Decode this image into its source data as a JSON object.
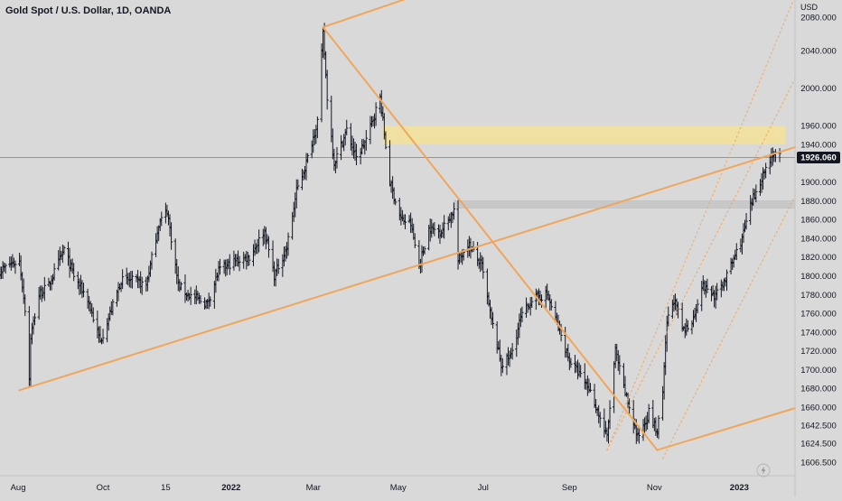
{
  "header": {
    "symbol_title": "Gold Spot / U.S. Dollar, 1D, OANDA"
  },
  "price_axis": {
    "unit_label": "USD",
    "current_price_label": "1926.060"
  },
  "chart_data": {
    "type": "ohlc",
    "title": "Gold Spot / U.S. Dollar, 1D, OANDA",
    "ylim": [
      1595,
      2090
    ],
    "y_ticks": [
      1606.5,
      1624.5,
      1642.5,
      1660,
      1680,
      1700,
      1720,
      1740,
      1760,
      1780,
      1800,
      1820,
      1840,
      1860,
      1880,
      1900,
      1920,
      1940,
      1960,
      2000,
      2040,
      2080
    ],
    "y_tick_labels": [
      "1606.500",
      "1624.500",
      "1642.500",
      "1660.000",
      "1680.000",
      "1700.000",
      "1720.000",
      "1740.000",
      "1760.000",
      "1780.000",
      "1800.000",
      "1820.000",
      "1840.000",
      "1860.000",
      "1880.000",
      "1900.000",
      "1920.000",
      "1940.000",
      "1960.000",
      "2000.000",
      "2040.000",
      "2080.000"
    ],
    "x_ticks": [
      "2021-08-01",
      "2021-10-01",
      "2021-11-15",
      "2022-01-01",
      "2022-03-01",
      "2022-05-01",
      "2022-07-01",
      "2022-09-01",
      "2022-11-01",
      "2023-01-01"
    ],
    "x_tick_labels": [
      "Aug",
      "Oct",
      "15",
      "2022",
      "Mar",
      "May",
      "Jul",
      "Sep",
      "Nov",
      "2023"
    ],
    "xlim": [
      "2021-07-19",
      "2023-02-10"
    ],
    "current_price": 1926.06,
    "price_path": [
      [
        "2021-07-19",
        1805
      ],
      [
        "2021-07-26",
        1812
      ],
      [
        "2021-08-02",
        1815
      ],
      [
        "2021-08-06",
        1765
      ],
      [
        "2021-08-09",
        1690
      ],
      [
        "2021-08-10",
        1735
      ],
      [
        "2021-08-16",
        1780
      ],
      [
        "2021-08-23",
        1790
      ],
      [
        "2021-09-03",
        1828
      ],
      [
        "2021-09-10",
        1800
      ],
      [
        "2021-09-20",
        1775
      ],
      [
        "2021-09-29",
        1730
      ],
      [
        "2021-10-05",
        1755
      ],
      [
        "2021-10-14",
        1795
      ],
      [
        "2021-10-22",
        1795
      ],
      [
        "2021-11-01",
        1790
      ],
      [
        "2021-11-10",
        1855
      ],
      [
        "2021-11-16",
        1870
      ],
      [
        "2021-11-24",
        1790
      ],
      [
        "2021-12-01",
        1780
      ],
      [
        "2021-12-15",
        1770
      ],
      [
        "2021-12-23",
        1805
      ],
      [
        "2022-01-03",
        1815
      ],
      [
        "2022-01-14",
        1820
      ],
      [
        "2022-01-25",
        1848
      ],
      [
        "2022-02-01",
        1800
      ],
      [
        "2022-02-10",
        1830
      ],
      [
        "2022-02-17",
        1890
      ],
      [
        "2022-02-24",
        1920
      ],
      [
        "2022-03-04",
        1965
      ],
      [
        "2022-03-08",
        2060
      ],
      [
        "2022-03-11",
        1990
      ],
      [
        "2022-03-16",
        1920
      ],
      [
        "2022-03-25",
        1955
      ],
      [
        "2022-04-01",
        1925
      ],
      [
        "2022-04-08",
        1945
      ],
      [
        "2022-04-18",
        1990
      ],
      [
        "2022-04-25",
        1900
      ],
      [
        "2022-05-03",
        1860
      ],
      [
        "2022-05-10",
        1855
      ],
      [
        "2022-05-16",
        1810
      ],
      [
        "2022-05-23",
        1850
      ],
      [
        "2022-06-01",
        1848
      ],
      [
        "2022-06-10",
        1870
      ],
      [
        "2022-06-13",
        1815
      ],
      [
        "2022-06-20",
        1835
      ],
      [
        "2022-06-30",
        1810
      ],
      [
        "2022-07-06",
        1760
      ],
      [
        "2022-07-14",
        1705
      ],
      [
        "2022-07-21",
        1715
      ],
      [
        "2022-07-28",
        1755
      ],
      [
        "2022-08-05",
        1775
      ],
      [
        "2022-08-16",
        1780
      ],
      [
        "2022-08-25",
        1740
      ],
      [
        "2022-09-01",
        1710
      ],
      [
        "2022-09-15",
        1680
      ],
      [
        "2022-09-28",
        1630
      ],
      [
        "2022-10-04",
        1720
      ],
      [
        "2022-10-10",
        1680
      ],
      [
        "2022-10-20",
        1630
      ],
      [
        "2022-10-28",
        1655
      ],
      [
        "2022-11-03",
        1635
      ],
      [
        "2022-11-07",
        1675
      ],
      [
        "2022-11-10",
        1750
      ],
      [
        "2022-11-15",
        1775
      ],
      [
        "2022-11-22",
        1740
      ],
      [
        "2022-11-29",
        1755
      ],
      [
        "2022-12-05",
        1790
      ],
      [
        "2022-12-15",
        1778
      ],
      [
        "2022-12-23",
        1800
      ],
      [
        "2023-01-03",
        1840
      ],
      [
        "2023-01-10",
        1878
      ],
      [
        "2023-01-17",
        1905
      ],
      [
        "2023-01-25",
        1930
      ],
      [
        "2023-01-30",
        1926.06
      ]
    ],
    "drawings": {
      "rising_trendline": [
        [
          "2021-08-02",
          1678
        ],
        [
          "2023-02-10",
          1937
        ]
      ],
      "falling_trendline": [
        [
          "2022-03-08",
          2068
        ],
        [
          "2022-11-03",
          1618
        ]
      ],
      "upper_channel_line": [
        [
          "2022-03-08",
          2068
        ],
        [
          "2022-05-21",
          2110
        ]
      ],
      "lower_channel_line": [
        [
          "2022-11-03",
          1618
        ],
        [
          "2023-02-10",
          1659
        ]
      ],
      "dotted_channel_lines": [
        [
          [
            "2022-09-28",
            1618
          ],
          [
            "2023-02-10",
            2105
          ]
        ],
        [
          [
            "2022-09-28",
            1618
          ],
          [
            "2023-02-10",
            2010
          ]
        ],
        [
          [
            "2022-11-07",
            1610
          ],
          [
            "2023-02-10",
            1885
          ]
        ]
      ],
      "resistance_zone": {
        "x": [
          "2022-04-20",
          "2023-02-03"
        ],
        "y": [
          1940,
          1960
        ]
      },
      "support_zone": {
        "x": [
          "2022-06-10",
          "2023-02-10"
        ],
        "y": [
          1872,
          1880
        ]
      }
    },
    "colors": {
      "ohlc_bars": "#131722",
      "trendlines": "#f0a65a",
      "resistance_zone": "#f3e196",
      "support_zone": "#c5c5c5",
      "price_label_bg": "#131722"
    }
  }
}
